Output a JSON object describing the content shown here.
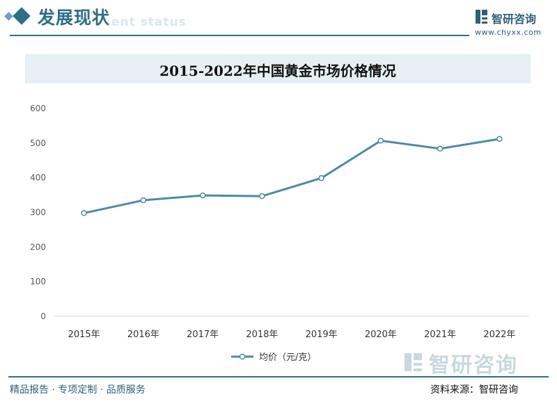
{
  "header": {
    "section_title": "发展现状",
    "section_subtitle": "ent status",
    "brand_name": "智研咨询",
    "brand_url": "www.chyxx.com"
  },
  "chart_title": "2015-2022年中国黄金市场价格情况",
  "chart_data": {
    "type": "line",
    "title": "2015-2022年中国黄金市场价格情况",
    "categories": [
      "2015年",
      "2016年",
      "2017年",
      "2018年",
      "2019年",
      "2020年",
      "2021年",
      "2022年"
    ],
    "series": [
      {
        "name": "均价（元/克）",
        "values": [
          298,
          335,
          349,
          347,
          399,
          507,
          484,
          512
        ]
      }
    ],
    "ylim": [
      0,
      600
    ],
    "yticks": [
      "0",
      "100",
      "200",
      "300",
      "400",
      "500",
      "600"
    ],
    "xlabel": "",
    "ylabel": "",
    "grid": false,
    "legend_position": "bottom",
    "colors": {
      "line": "#4a8ba5",
      "marker_fill": "#ffffff"
    }
  },
  "footer": {
    "left_text": "精品报告 · 专项定制 · 品质服务",
    "right_text": "资料来源：智研咨询"
  },
  "watermark": {
    "brand_name": "智研咨询",
    "url": "www.chyxx.com"
  },
  "colors": {
    "accent": "#2e6f86",
    "title_band": "#e6f0f4"
  }
}
